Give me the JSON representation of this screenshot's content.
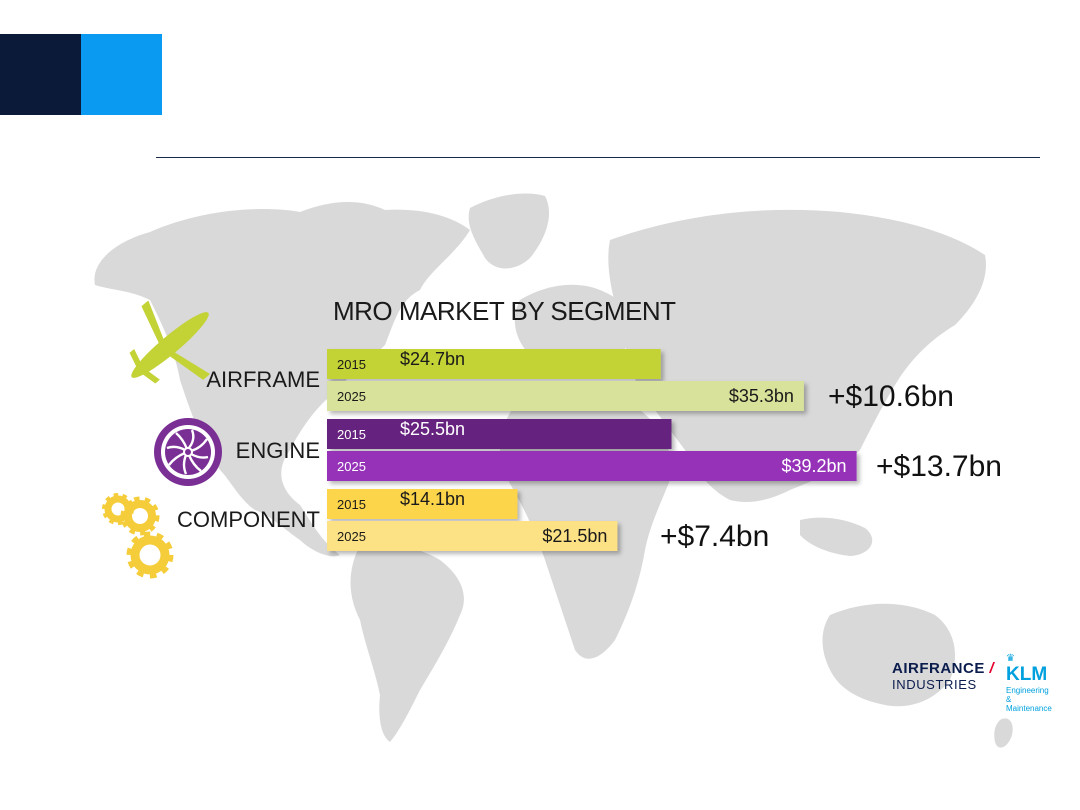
{
  "chart_data": {
    "type": "bar",
    "title": "MRO MARKET BY SEGMENT",
    "categories": [
      "AIRFRAME",
      "ENGINE",
      "COMPONENT"
    ],
    "series": [
      {
        "name": "2015",
        "values": [
          24.7,
          25.5,
          14.1
        ]
      },
      {
        "name": "2025",
        "values": [
          35.3,
          39.2,
          21.5
        ]
      }
    ],
    "value_labels": {
      "2015": [
        "$24.7bn",
        "$25.5bn",
        "$14.1bn"
      ],
      "2025": [
        "$35.3bn",
        "$39.2bn",
        "$21.5bn"
      ]
    },
    "deltas": [
      "+$10.6bn",
      "+$13.7bn",
      "+$7.4bn"
    ],
    "colors": {
      "AIRFRAME": {
        "2015": "#c3d235",
        "2025": "#d9e29a"
      },
      "ENGINE": {
        "2015": "#66217f",
        "2025": "#9533b8"
      },
      "COMPONENT": {
        "2015": "#fdd54b",
        "2025": "#fde285"
      }
    },
    "orientation": "horizontal",
    "legend": "none",
    "grid": false
  },
  "icons": {
    "airframe": "airplane-icon",
    "engine": "jet-engine-icon",
    "component": "gears-icon"
  },
  "logo": {
    "airfrance_line1": "AIRFRANCE",
    "airfrance_line2": "INDUSTRIES",
    "klm": "KLM",
    "klm_sub1": "Engineering &",
    "klm_sub2": "Maintenance"
  },
  "colors": {
    "header_dark": "#0c1a3a",
    "header_blue": "#0a9af2",
    "map_gray": "#d8d8d8"
  }
}
